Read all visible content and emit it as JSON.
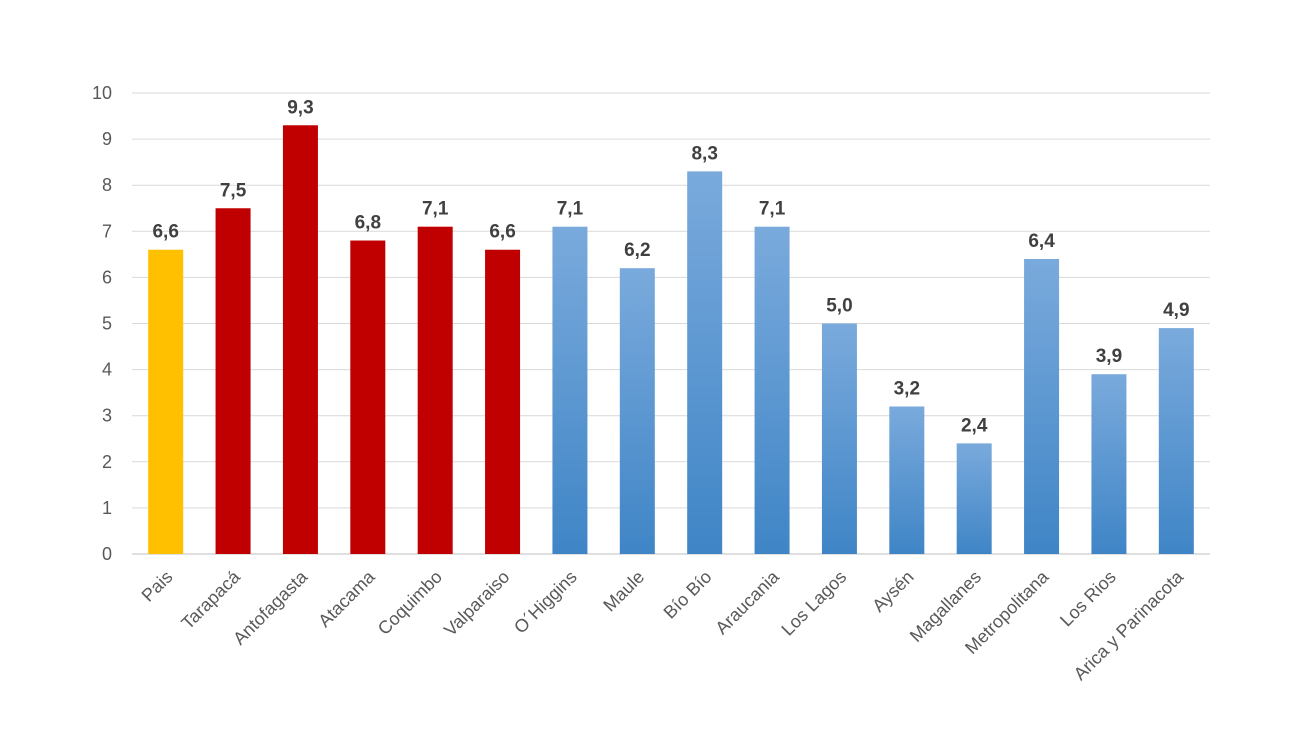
{
  "chart_data": {
    "type": "bar",
    "categories": [
      "Pais",
      "Tarapacá",
      "Antofagasta",
      "Atacama",
      "Coquimbo",
      "Valparaiso",
      "O´Higgins",
      "Maule",
      "Bío Bío",
      "Araucania",
      "Los Lagos",
      "Aysén",
      "Magallanes",
      "Metropolitana",
      "Los Rios",
      "Arica y Parinacota"
    ],
    "values": [
      6.6,
      7.5,
      9.3,
      6.8,
      7.1,
      6.6,
      7.1,
      6.2,
      8.3,
      7.1,
      5.0,
      3.2,
      2.4,
      6.4,
      3.9,
      4.9
    ],
    "data_labels": [
      "6,6",
      "7,5",
      "9,3",
      "6,8",
      "7,1",
      "6,6",
      "7,1",
      "6,2",
      "8,3",
      "7,1",
      "5,0",
      "3,2",
      "2,4",
      "6,4",
      "3,9",
      "4,9"
    ],
    "groups": [
      "country",
      "north",
      "north",
      "north",
      "north",
      "north",
      "south",
      "south",
      "south",
      "south",
      "south",
      "south",
      "south",
      "south",
      "south",
      "south"
    ],
    "group_colors": {
      "country": "#ffc000",
      "north": "#c00000",
      "south_top": "#7aaadc",
      "south_bottom": "#3f85c6"
    },
    "ylim": [
      0,
      10
    ],
    "yticks": [
      "0",
      "1",
      "2",
      "3",
      "4",
      "5",
      "6",
      "7",
      "8",
      "9",
      "10"
    ],
    "grid": true,
    "title": "",
    "xlabel": "",
    "ylabel": ""
  }
}
